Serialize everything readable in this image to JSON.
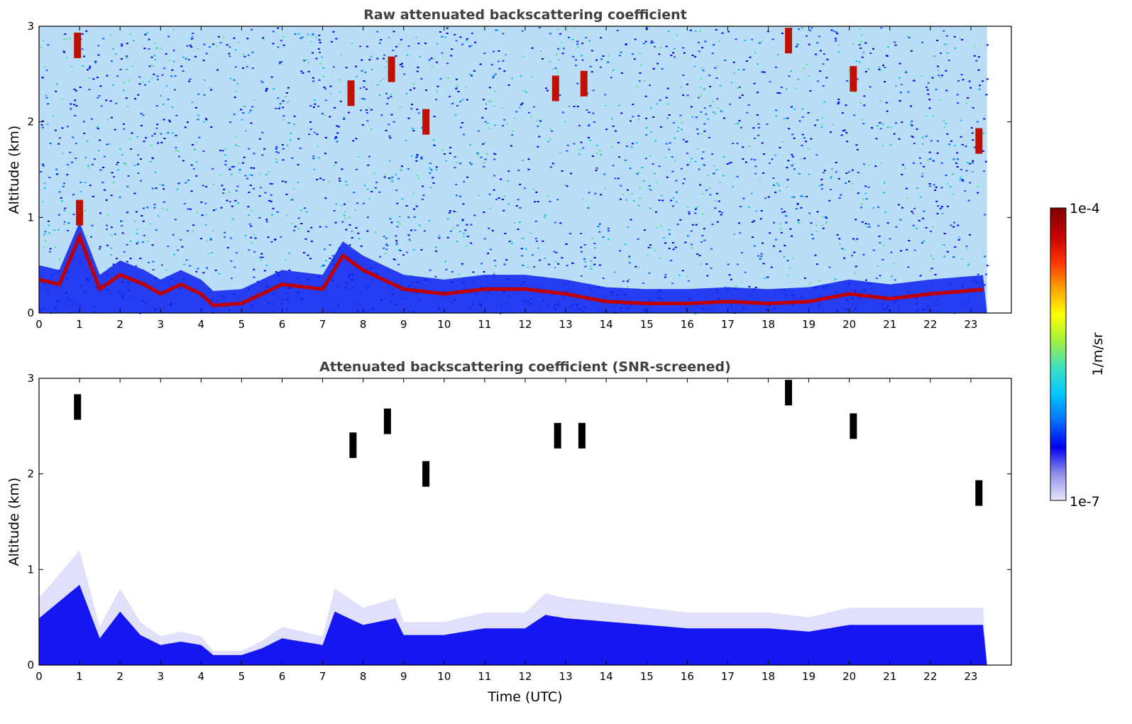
{
  "chart_data": [
    {
      "type": "heatmap",
      "title": "Raw attenuated backscattering coefficient",
      "xlabel": "",
      "ylabel": "Altitude (km)",
      "xlim": [
        0,
        24
      ],
      "ylim": [
        0,
        3
      ],
      "x_ticks": [
        "0",
        "1",
        "2",
        "3",
        "4",
        "5",
        "6",
        "7",
        "8",
        "9",
        "10",
        "11",
        "12",
        "13",
        "14",
        "15",
        "16",
        "17",
        "18",
        "19",
        "20",
        "21",
        "22",
        "23"
      ],
      "y_ticks": [
        "0",
        "1",
        "2",
        "3"
      ],
      "data_end_time": 23.4,
      "boundary_layer_top_km": [
        [
          0,
          0.35
        ],
        [
          0.5,
          0.3
        ],
        [
          1,
          0.8
        ],
        [
          1.5,
          0.25
        ],
        [
          2,
          0.4
        ],
        [
          2.6,
          0.3
        ],
        [
          3,
          0.2
        ],
        [
          3.5,
          0.3
        ],
        [
          4,
          0.2
        ],
        [
          4.3,
          0.08
        ],
        [
          5,
          0.1
        ],
        [
          5.5,
          0.2
        ],
        [
          6,
          0.3
        ],
        [
          7,
          0.25
        ],
        [
          7.5,
          0.6
        ],
        [
          8,
          0.45
        ],
        [
          9,
          0.25
        ],
        [
          10,
          0.2
        ],
        [
          11,
          0.25
        ],
        [
          12,
          0.25
        ],
        [
          13,
          0.2
        ],
        [
          14,
          0.12
        ],
        [
          15,
          0.1
        ],
        [
          16,
          0.1
        ],
        [
          17,
          0.12
        ],
        [
          18,
          0.1
        ],
        [
          19,
          0.12
        ],
        [
          20,
          0.2
        ],
        [
          21,
          0.15
        ],
        [
          22,
          0.2
        ],
        [
          23.4,
          0.25
        ]
      ],
      "cloud_features": [
        {
          "time": 0.95,
          "alt_km": 2.8
        },
        {
          "time": 1.0,
          "alt_km": 1.05
        },
        {
          "time": 7.7,
          "alt_km": 2.3
        },
        {
          "time": 8.7,
          "alt_km": 2.55
        },
        {
          "time": 9.55,
          "alt_km": 2.0
        },
        {
          "time": 12.75,
          "alt_km": 2.35
        },
        {
          "time": 13.45,
          "alt_km": 2.4
        },
        {
          "time": 18.5,
          "alt_km": 2.85
        },
        {
          "time": 20.1,
          "alt_km": 2.45
        },
        {
          "time": 23.2,
          "alt_km": 1.8
        }
      ]
    },
    {
      "type": "heatmap",
      "title": "Attenuated backscattering coefficient (SNR-screened)",
      "xlabel": "Time (UTC)",
      "ylabel": "Altitude (km)",
      "xlim": [
        0,
        24
      ],
      "ylim": [
        0,
        3
      ],
      "x_ticks": [
        "0",
        "1",
        "2",
        "3",
        "4",
        "5",
        "6",
        "7",
        "8",
        "9",
        "10",
        "11",
        "12",
        "13",
        "14",
        "15",
        "16",
        "17",
        "18",
        "19",
        "20",
        "21",
        "22",
        "23"
      ],
      "y_ticks": [
        "0",
        "1",
        "2",
        "3"
      ],
      "data_end_time": 23.4,
      "aerosol_layer_top_km": [
        [
          0,
          0.7
        ],
        [
          0.4,
          0.9
        ],
        [
          1,
          1.2
        ],
        [
          1.5,
          0.4
        ],
        [
          2,
          0.8
        ],
        [
          2.5,
          0.45
        ],
        [
          3,
          0.3
        ],
        [
          3.5,
          0.35
        ],
        [
          4,
          0.3
        ],
        [
          4.3,
          0.15
        ],
        [
          5,
          0.15
        ],
        [
          5.5,
          0.25
        ],
        [
          6,
          0.4
        ],
        [
          7,
          0.3
        ],
        [
          7.3,
          0.8
        ],
        [
          8,
          0.6
        ],
        [
          8.8,
          0.7
        ],
        [
          9,
          0.45
        ],
        [
          10,
          0.45
        ],
        [
          11,
          0.55
        ],
        [
          12,
          0.55
        ],
        [
          12.5,
          0.75
        ],
        [
          13,
          0.7
        ],
        [
          14,
          0.65
        ],
        [
          15,
          0.6
        ],
        [
          16,
          0.55
        ],
        [
          17,
          0.55
        ],
        [
          18,
          0.55
        ],
        [
          19,
          0.5
        ],
        [
          20,
          0.6
        ],
        [
          21,
          0.6
        ],
        [
          22,
          0.6
        ],
        [
          23.4,
          0.6
        ]
      ],
      "cloud_features": [
        {
          "time": 0.95,
          "alt_km": 2.7
        },
        {
          "time": 7.75,
          "alt_km": 2.3
        },
        {
          "time": 8.6,
          "alt_km": 2.55
        },
        {
          "time": 9.55,
          "alt_km": 2.0
        },
        {
          "time": 12.8,
          "alt_km": 2.4
        },
        {
          "time": 13.4,
          "alt_km": 2.4
        },
        {
          "time": 18.5,
          "alt_km": 2.85
        },
        {
          "time": 20.1,
          "alt_km": 2.5
        },
        {
          "time": 23.2,
          "alt_km": 1.8
        }
      ]
    }
  ],
  "colorbar": {
    "label": "1/m/sr",
    "max_label": "1e-4",
    "min_label": "1e-7",
    "scale": "log",
    "colormap": [
      "#e8e8fa",
      "#9090ee",
      "#0000ee",
      "#0070ff",
      "#00c8ff",
      "#40e0c0",
      "#a0f040",
      "#ffff00",
      "#ffa000",
      "#ff3000",
      "#c00000",
      "#800000"
    ]
  },
  "colors": {
    "title": "#404040",
    "cloud_core": "#000000"
  }
}
